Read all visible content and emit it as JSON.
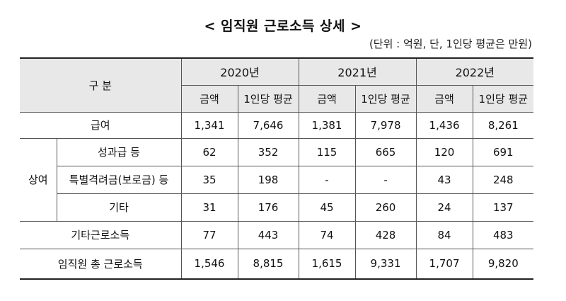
{
  "title": "< 임직원 근로소득 상세 >",
  "unit_note": "(단위 : 억원, 단, 1인당 평균은 만원)",
  "header": {
    "category": "구 분",
    "years": [
      "2020년",
      "2021년",
      "2022년"
    ],
    "sub_amount": "금액",
    "sub_avg": "1인당 평균"
  },
  "bonus_group": "상여",
  "rows": [
    {
      "label": "급여",
      "values": [
        "1,341",
        "7,646",
        "1,381",
        "7,978",
        "1,436",
        "8,261"
      ]
    },
    {
      "label": "성과급 등",
      "values": [
        "62",
        "352",
        "115",
        "665",
        "120",
        "691"
      ]
    },
    {
      "label": "특별격려금(보로금) 등",
      "values": [
        "35",
        "198",
        "-",
        "-",
        "43",
        "248"
      ]
    },
    {
      "label": "기타",
      "values": [
        "31",
        "176",
        "45",
        "260",
        "24",
        "137"
      ]
    },
    {
      "label": "기타근로소득",
      "values": [
        "77",
        "443",
        "74",
        "428",
        "84",
        "483"
      ]
    },
    {
      "label": "임직원 총 근로소득",
      "values": [
        "1,546",
        "8,815",
        "1,615",
        "9,331",
        "1,707",
        "9,820"
      ]
    }
  ]
}
